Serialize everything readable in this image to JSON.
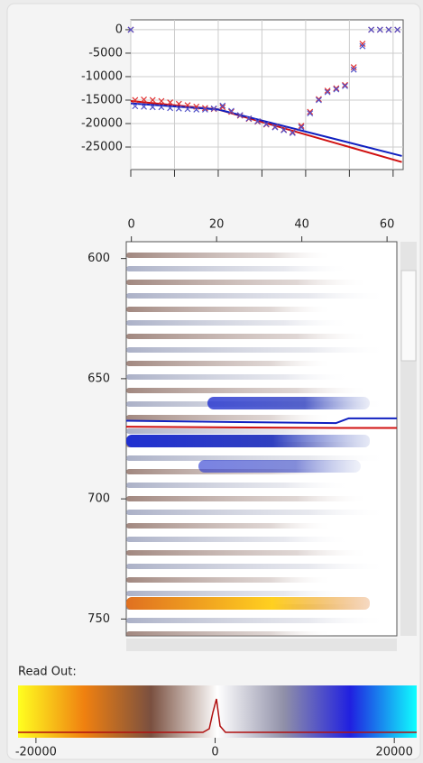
{
  "top_chart": {
    "type": "line",
    "xlim": [
      0,
      62.3
    ],
    "ylim": [
      -29800,
      2100
    ],
    "xticks": [
      0,
      10,
      20,
      30,
      40,
      50,
      60
    ],
    "yticks": [
      0,
      -5000,
      -10000,
      -15000,
      -20000,
      -25000
    ],
    "grid": true,
    "series": [
      {
        "kind": "line",
        "color": "#d01010",
        "x": [
          0,
          20,
          62
        ],
        "values": [
          -15200,
          -17000,
          -28200
        ]
      },
      {
        "kind": "line",
        "color": "#1020c0",
        "x": [
          0,
          20,
          62
        ],
        "values": [
          -15700,
          -17000,
          -26900
        ]
      },
      {
        "kind": "cross",
        "color": "#e03030",
        "x": [
          0,
          1,
          3,
          5,
          7,
          9,
          11,
          13,
          15,
          17,
          19,
          21,
          23,
          25,
          27,
          29,
          31,
          33,
          35,
          37,
          39,
          41,
          43,
          45,
          47,
          49,
          51,
          53,
          55,
          57,
          59,
          61
        ],
        "values": [
          0,
          -15000,
          -14900,
          -15000,
          -15200,
          -15500,
          -15800,
          -16100,
          -16400,
          -16700,
          -16900,
          -16500,
          -17500,
          -18300,
          -19000,
          -19600,
          -20200,
          -20700,
          -21300,
          -21800,
          -20500,
          -17500,
          -14800,
          -13000,
          -12500,
          -11800,
          -8000,
          -3000,
          0,
          0,
          0,
          0
        ]
      },
      {
        "kind": "cross",
        "color": "#5050c8",
        "x": [
          0,
          1,
          3,
          5,
          7,
          9,
          11,
          13,
          15,
          17,
          19,
          21,
          23,
          25,
          27,
          29,
          31,
          33,
          35,
          37,
          39,
          41,
          43,
          45,
          47,
          49,
          51,
          53,
          55,
          57,
          59,
          61
        ],
        "values": [
          0,
          -16300,
          -16400,
          -16500,
          -16500,
          -16700,
          -16800,
          -16900,
          -17000,
          -17000,
          -16800,
          -16200,
          -17300,
          -18200,
          -18900,
          -19500,
          -20100,
          -20800,
          -21400,
          -22000,
          -20800,
          -17800,
          -15000,
          -13300,
          -12700,
          -12000,
          -8500,
          -3500,
          0,
          0,
          0,
          0
        ]
      }
    ]
  },
  "section": {
    "type": "line",
    "xlim": [
      -1.2,
      62.3
    ],
    "ylim": [
      593,
      757
    ],
    "xticks": [
      0,
      20,
      40,
      60
    ],
    "yticks": [
      600,
      650,
      700,
      750
    ],
    "series": [
      {
        "color": "#1020c0",
        "x": [
          -1.2,
          48,
          51,
          62.3
        ],
        "values": [
          667.5,
          668.5,
          666.5,
          666.5
        ]
      },
      {
        "color": "#d01010",
        "x": [
          -1.2,
          48,
          51,
          62.3
        ],
        "values": [
          670,
          670.5,
          670.5,
          670.5
        ]
      }
    ]
  },
  "readout": {
    "label": "Read Out:",
    "xlim": [
      -22000,
      22500
    ],
    "xticks": [
      -20000,
      0,
      20000
    ],
    "colors": [
      "#ffff20",
      "#f08010",
      "#7a5040",
      "#ffffff",
      "#9090a8",
      "#2020e0",
      "#10ffff"
    ]
  }
}
